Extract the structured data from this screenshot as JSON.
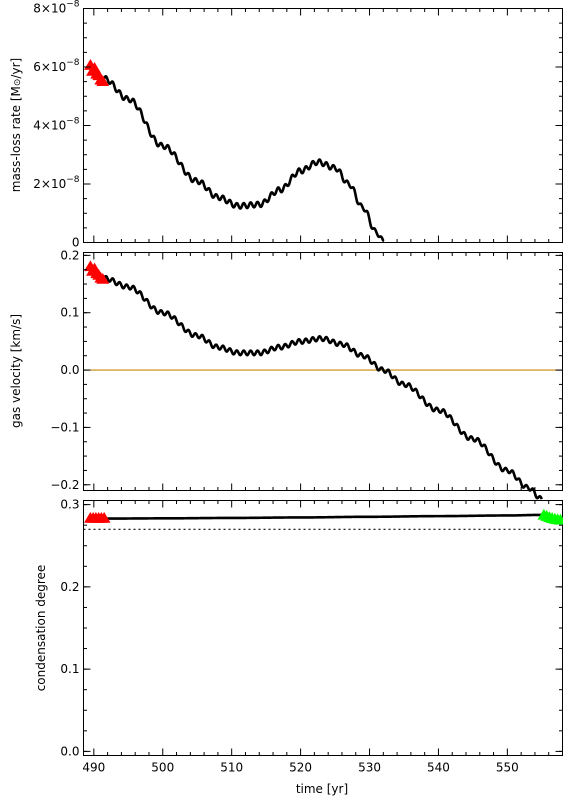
{
  "chart_data": [
    {
      "name": "mass-loss-panel",
      "type": "line",
      "ylabel": "mass-loss rate [M⊙/yr]",
      "ylim": [
        0,
        8e-08
      ],
      "xlim": [
        488.5,
        558
      ],
      "y_ticks": [
        {
          "value": 0,
          "mantissa": "0",
          "exp": ""
        },
        {
          "value": 2e-08,
          "mantissa": "2×10",
          "exp": "−8"
        },
        {
          "value": 4e-08,
          "mantissa": "4×10",
          "exp": "−8"
        },
        {
          "value": 6e-08,
          "mantissa": "6×10",
          "exp": "−8"
        },
        {
          "value": 8e-08,
          "mantissa": "8×10",
          "exp": "−8"
        }
      ],
      "series": [
        {
          "role": "main-curve",
          "color": "#000000",
          "x": [
            491.5,
            495,
            500,
            505,
            508,
            511,
            514,
            517,
            520,
            522.5,
            525,
            527,
            529,
            531,
            532
          ],
          "y": [
            5.6e-08,
            4.9e-08,
            3.3e-08,
            2.1e-08,
            1.55e-08,
            1.25e-08,
            1.3e-08,
            1.8e-08,
            2.45e-08,
            2.75e-08,
            2.55e-08,
            2e-08,
            1.2e-08,
            3.5e-09,
            5e-10
          ],
          "oscillation": {
            "amplitude": 9e-10,
            "period": 1.0
          }
        },
        {
          "role": "start-markers",
          "marker": "triangle",
          "color": "#ff0000",
          "x": [
            489.5,
            489.8,
            490.1,
            490.4,
            490.7,
            491.0,
            491.3
          ],
          "y": [
            6.05e-08,
            5.85e-08,
            5.95e-08,
            5.75e-08,
            5.7e-08,
            5.55e-08,
            5.5e-08
          ]
        }
      ]
    },
    {
      "name": "gas-velocity-panel",
      "type": "line",
      "ylabel": "gas velocity [km/s]",
      "ylim": [
        -0.21,
        0.205
      ],
      "xlim": [
        488.5,
        558
      ],
      "y_ticks": [
        {
          "value": -0.2,
          "label": "−0.2"
        },
        {
          "value": -0.1,
          "label": "−0.1"
        },
        {
          "value": 0.0,
          "label": "0.0"
        },
        {
          "value": 0.1,
          "label": "0.1"
        },
        {
          "value": 0.2,
          "label": "0.2"
        }
      ],
      "reference_line": {
        "y": 0.0,
        "color": "#c8860a"
      },
      "series": [
        {
          "role": "main-curve",
          "color": "#000000",
          "x": [
            491.5,
            495,
            500,
            505,
            508,
            511,
            514,
            517,
            520,
            523,
            526,
            529,
            532,
            535,
            540,
            545,
            550,
            553,
            555
          ],
          "y": [
            0.16,
            0.145,
            0.1,
            0.06,
            0.04,
            0.03,
            0.03,
            0.04,
            0.05,
            0.055,
            0.045,
            0.025,
            0.0,
            -0.025,
            -0.07,
            -0.12,
            -0.175,
            -0.205,
            -0.225
          ],
          "oscillation": {
            "amplitude": 0.004,
            "period": 1.0
          }
        },
        {
          "role": "start-markers",
          "marker": "triangle",
          "color": "#ff0000",
          "x": [
            489.5,
            489.8,
            490.1,
            490.4,
            490.7,
            491.0,
            491.3
          ],
          "y": [
            0.18,
            0.172,
            0.176,
            0.168,
            0.165,
            0.16,
            0.158
          ]
        }
      ]
    },
    {
      "name": "condensation-panel",
      "type": "line",
      "xlabel": "time [yr]",
      "ylabel": "condensation degree",
      "ylim": [
        -0.005,
        0.305
      ],
      "xlim": [
        488.5,
        558
      ],
      "x_ticks": [
        490,
        500,
        510,
        520,
        530,
        540,
        550
      ],
      "y_ticks": [
        {
          "value": 0.0,
          "label": "0.0"
        },
        {
          "value": 0.1,
          "label": "0.1"
        },
        {
          "value": 0.2,
          "label": "0.2"
        },
        {
          "value": 0.3,
          "label": "0.3"
        }
      ],
      "reference_line": {
        "y": 0.27,
        "color": "#000000",
        "style": "dotted"
      },
      "series": [
        {
          "role": "main-curve",
          "color": "#000000",
          "x": [
            491.5,
            500,
            510,
            520,
            530,
            540,
            550,
            555
          ],
          "y": [
            0.283,
            0.2833,
            0.2838,
            0.2844,
            0.2852,
            0.286,
            0.2868,
            0.2875
          ]
        },
        {
          "role": "start-markers",
          "marker": "triangle",
          "color": "#ff0000",
          "x": [
            489.5,
            489.9,
            490.3,
            490.7,
            491.1,
            491.5
          ],
          "y": [
            0.2832,
            0.2832,
            0.2832,
            0.2832,
            0.2832,
            0.2832
          ]
        },
        {
          "role": "end-markers",
          "marker": "triangle",
          "color": "#00ff00",
          "x": [
            555.3,
            555.7,
            556.1,
            556.5,
            556.9,
            557.3,
            557.7
          ],
          "y": [
            0.287,
            0.2855,
            0.284,
            0.283,
            0.282,
            0.2815,
            0.281
          ]
        }
      ]
    }
  ]
}
